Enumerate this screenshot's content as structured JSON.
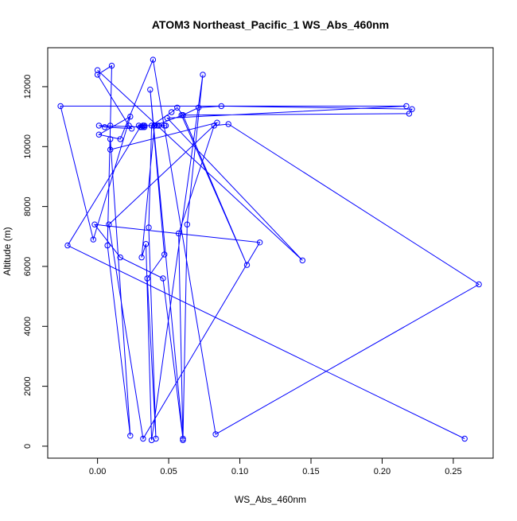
{
  "chart_data": {
    "type": "scatter",
    "title": "ATOM3 Northeast_Pacific_1 WS_Abs_460nm",
    "xlabel": "WS_Abs_460nm",
    "ylabel": "Altitude (m)",
    "xlim": [
      -0.035,
      0.278
    ],
    "ylim": [
      -400,
      13300
    ],
    "x_ticks": [
      0.0,
      0.05,
      0.1,
      0.15,
      0.2,
      0.25
    ],
    "x_tick_labels": [
      "0.00",
      "0.05",
      "0.10",
      "0.15",
      "0.20",
      "0.25"
    ],
    "y_ticks": [
      0,
      2000,
      4000,
      6000,
      8000,
      10000,
      12000
    ],
    "y_tick_labels": [
      "0",
      "2000",
      "4000",
      "6000",
      "8000",
      "10000",
      "12000"
    ],
    "grid": false,
    "legend": "none",
    "connected": true,
    "marker": "open-circle",
    "color": "#0000ff",
    "series": [
      {
        "x": [
          0.258,
          -0.021,
          0.03,
          0.033,
          0.032,
          0.048,
          0.04,
          0.043,
          0.047,
          0.043,
          0.042,
          0.033,
          0.032,
          0.029,
          0.031,
          0.032,
          0.001,
          0.005,
          0.024,
          0.022,
          0.0,
          0.01,
          0.009,
          0.007,
          0.023,
          0.009,
          0.009,
          0.084,
          0.008,
          0.032,
          0.114,
          -0.002,
          0.016,
          0.046,
          0.06,
          0.037,
          0.047,
          0.035,
          0.041,
          0.036,
          0.038,
          0.052,
          0.056,
          0.06,
          0.071,
          0.087,
          0.221,
          0.219,
          0.059,
          0.105,
          0.06,
          0.04,
          0.031,
          0.034,
          0.038,
          0.074,
          0.063,
          0.06,
          0.057,
          0.082,
          0.092,
          0.268,
          0.083,
          0.039,
          0.016,
          0.001,
          0.023,
          -0.003,
          -0.026,
          0.217,
          0.049,
          0.144,
          0.0
        ],
        "y": [
          250,
          6700,
          10650,
          10650,
          10700,
          10700,
          10700,
          10700,
          10700,
          10700,
          10700,
          10700,
          10700,
          10700,
          10650,
          10650,
          10700,
          10650,
          10600,
          10700,
          12400,
          12700,
          10700,
          6700,
          350,
          10250,
          9900,
          10800,
          7400,
          250,
          6800,
          7400,
          6300,
          5600,
          250,
          11900,
          6400,
          5600,
          250,
          7300,
          10700,
          11150,
          11300,
          11050,
          11300,
          11350,
          11250,
          11100,
          11050,
          6050,
          11050,
          10700,
          6300,
          6750,
          200,
          12400,
          7400,
          200,
          7100,
          10700,
          10750,
          5400,
          400,
          12900,
          10250,
          10400,
          11000,
          6900,
          11350,
          11350,
          10950,
          6200,
          12550
        ]
      }
    ]
  }
}
